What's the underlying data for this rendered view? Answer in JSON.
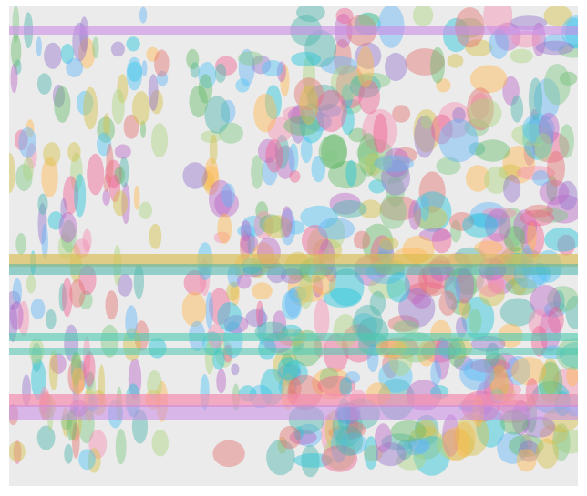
{
  "colors": {
    "background": "#ebebeb",
    "page": "#ffffff",
    "palette": [
      "#f06292",
      "#ba68c8",
      "#9575cd",
      "#4fc3f7",
      "#26c6da",
      "#4db6ac",
      "#66bb6a",
      "#aed581",
      "#d4c247",
      "#ffb74d",
      "#e57373",
      "#f48fb1",
      "#64b5f6",
      "#81c784"
    ]
  },
  "bands": [
    {
      "color": "#c98de6",
      "opacity": 0.6
    },
    {
      "color": "#d9bd52",
      "opacity": 0.65
    },
    {
      "color": "#4db6ac",
      "opacity": 0.55
    },
    {
      "color": "#4fc9b0",
      "opacity": 0.6
    },
    {
      "color": "#4fc9b0",
      "opacity": 0.55
    },
    {
      "color": "#f48fb1",
      "opacity": 0.7
    },
    {
      "color": "#c98de6",
      "opacity": 0.55
    }
  ],
  "blob_opacity": 0.45
}
